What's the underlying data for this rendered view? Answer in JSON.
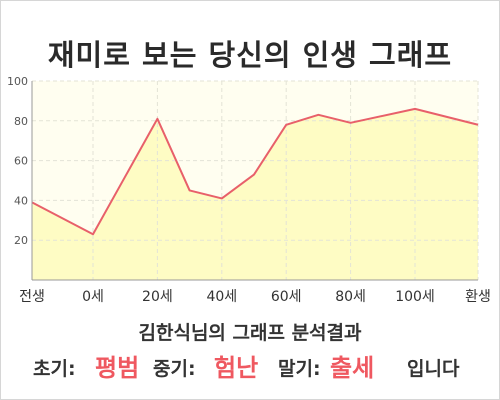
{
  "title": "재미로 보는 당신의 인생 그래프",
  "subtitle": "김한식님의 그래프 분석결과",
  "summary": {
    "early_label": "초기:",
    "early_value": "평범",
    "middle_label": "중기:",
    "middle_value": "험난",
    "late_label": "말기:",
    "late_value": "출세",
    "ending": "입니다"
  },
  "colors": {
    "line": "#e8606a",
    "fill": "#fefcc4",
    "plot_bg": "#fffef0",
    "highlight": "#ef5860"
  },
  "chart_data": {
    "type": "area",
    "x_tick_labels": [
      "전생",
      "0세",
      "20세",
      "40세",
      "60세",
      "80세",
      "100세",
      "환생"
    ],
    "y_ticks": [
      20,
      40,
      60,
      80,
      100
    ],
    "ylim": [
      0,
      100
    ],
    "grid": true,
    "series": [
      {
        "points": [
          {
            "x": "전생",
            "y": 39
          },
          {
            "x": "0세",
            "y": 23
          },
          {
            "x": "20세",
            "y": 81
          },
          {
            "x": "30세",
            "y": 45
          },
          {
            "x": "40세",
            "y": 41
          },
          {
            "x": "50세",
            "y": 53
          },
          {
            "x": "60세",
            "y": 78
          },
          {
            "x": "70세",
            "y": 83
          },
          {
            "x": "80세",
            "y": 79
          },
          {
            "x": "100세",
            "y": 86
          },
          {
            "x": "환생",
            "y": 78
          }
        ]
      }
    ]
  }
}
